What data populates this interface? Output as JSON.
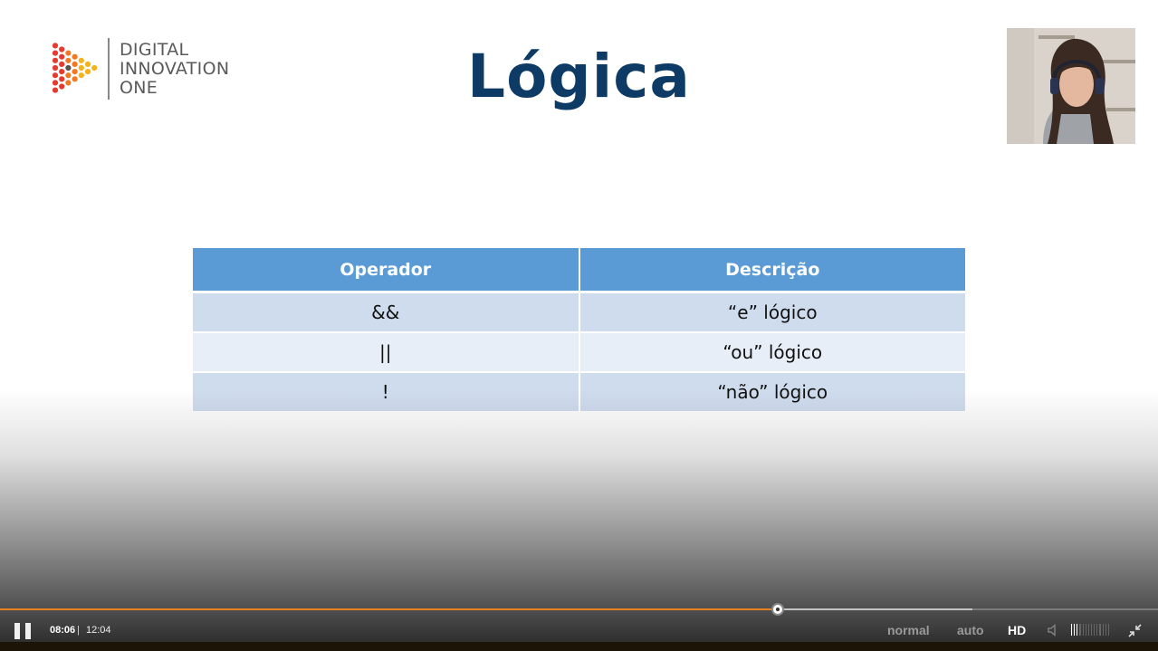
{
  "logo": {
    "line1": "DIGITAL",
    "line2": "INNOVATION",
    "line3": "ONE",
    "colors": [
      "#e63a2e",
      "#f07a22",
      "#f6b21a"
    ]
  },
  "slide": {
    "title": "Lógica",
    "table": {
      "headers": [
        "Operador",
        "Descrição"
      ],
      "rows": [
        [
          "&&",
          "“e” lógico"
        ],
        [
          "||",
          "“ou” lógico"
        ],
        [
          "!",
          "“não” lógico"
        ]
      ]
    },
    "colors": {
      "title": "#0e3a66",
      "header": "#5b9bd5"
    }
  },
  "player": {
    "current_time": "08:06",
    "separator": "|",
    "duration": "12:04",
    "progress_fraction": 0.672,
    "buffered_fraction": 0.84,
    "playback_rate_label": "normal",
    "quality_label": "auto",
    "hd_label": "HD",
    "volume_level": 0.2,
    "accent_color": "#e8821e",
    "icons": [
      "pause-icon",
      "volume-icon",
      "exit-fullscreen-icon"
    ]
  }
}
